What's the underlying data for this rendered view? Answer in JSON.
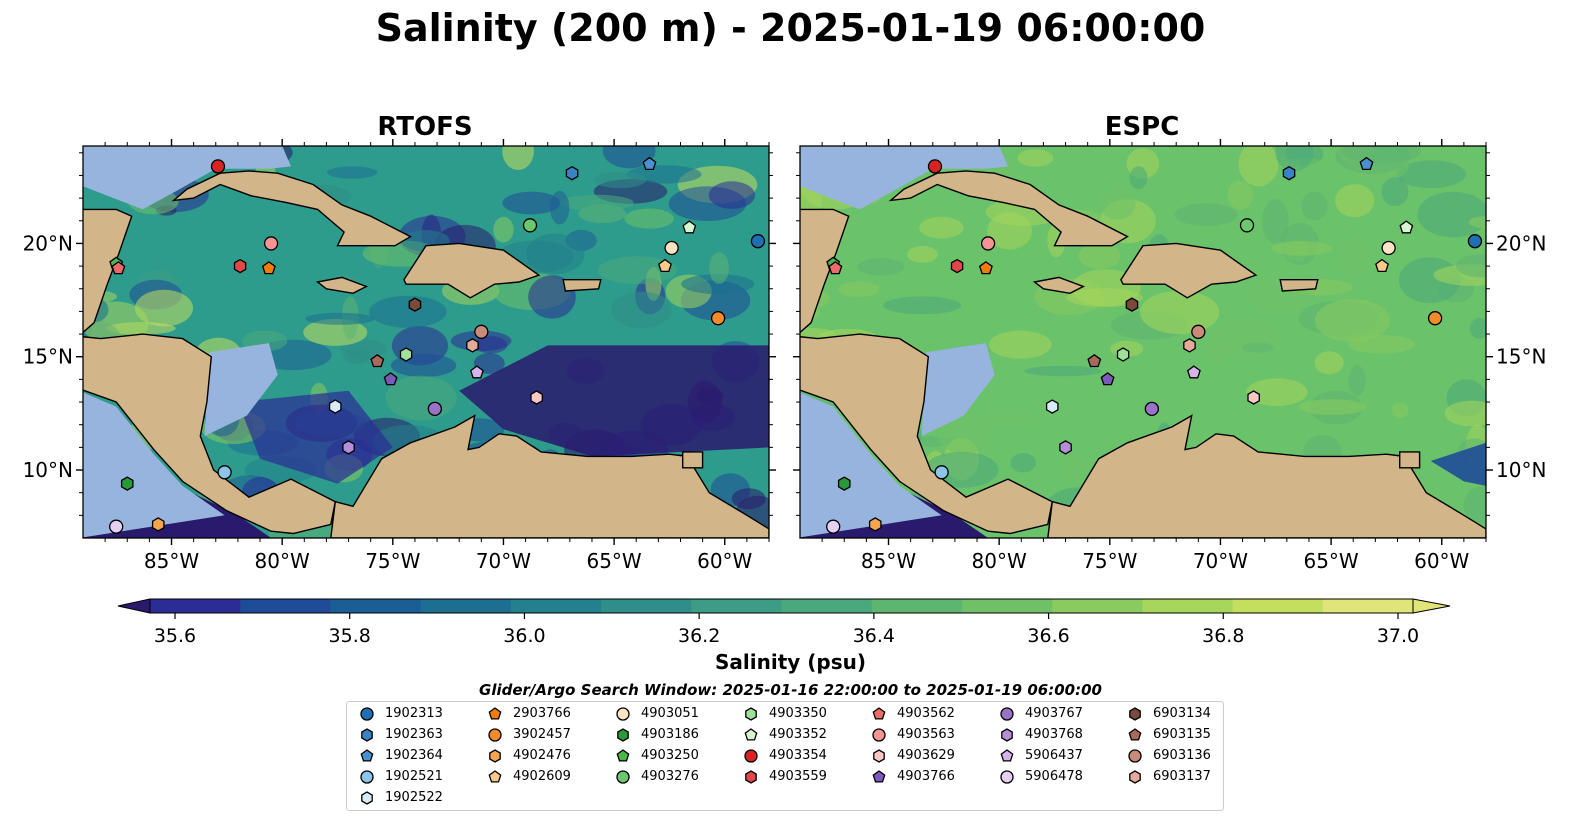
{
  "title": "Salinity (200 m) - 2025-01-19 06:00:00",
  "panels": [
    {
      "title": "RTOFS",
      "color": "#2e9c8c"
    },
    {
      "title": "ESPC",
      "color": "#6ac26a"
    }
  ],
  "colorbar": {
    "label": "Salinity (psu)",
    "ticks": [
      "35.6",
      "35.8",
      "36.0",
      "36.2",
      "36.4",
      "36.6",
      "36.8",
      "37.0"
    ],
    "min": 35.6,
    "max": 37.0,
    "step": 0.1,
    "colors": [
      "#2a1a6e",
      "#2b2c96",
      "#1f4c98",
      "#1b5e96",
      "#1c6f91",
      "#23808d",
      "#2f8e89",
      "#3c9c84",
      "#4aa97c",
      "#5cb571",
      "#70c166",
      "#89cb5e",
      "#a6d65b",
      "#c4df5e",
      "#e0e57a"
    ]
  },
  "axes": {
    "lon_ticks": [
      "85°W",
      "80°W",
      "75°W",
      "70°W",
      "65°W",
      "60°W"
    ],
    "lat_ticks": [
      "10°N",
      "15°N",
      "20°N"
    ]
  },
  "search_window": "Glider/Argo Search Window: 2025-01-16 22:00:00 to 2025-01-19 06:00:00",
  "chart_data": {
    "type": "scatter",
    "title": "Salinity (200 m) - 2025-01-19 06:00:00",
    "subplots": [
      "RTOFS",
      "ESPC"
    ],
    "xlim": [
      -89,
      -58
    ],
    "ylim": [
      7,
      24.3
    ],
    "colorbar_label": "Salinity (psu)",
    "colorbar_range": [
      35.6,
      37.0
    ],
    "series": [
      {
        "name": "1902313",
        "marker": "circle",
        "color": "#1f6fb4",
        "lon": -58.5,
        "lat": 20.1
      },
      {
        "name": "1902363",
        "marker": "hexagon",
        "color": "#3a82c4",
        "lon": -66.9,
        "lat": 23.1
      },
      {
        "name": "1902364",
        "marker": "pentagon",
        "color": "#4a90cf",
        "lon": -63.4,
        "lat": 23.5
      },
      {
        "name": "1902521",
        "marker": "circle",
        "color": "#8cc4ea",
        "lon": -82.6,
        "lat": 9.9
      },
      {
        "name": "1902522",
        "marker": "hexagon",
        "color": "#d6ecfa",
        "lon": -77.6,
        "lat": 12.8
      },
      {
        "name": "2903766",
        "marker": "pentagon",
        "color": "#f07c0a",
        "lon": -80.6,
        "lat": 18.9
      },
      {
        "name": "3902457",
        "marker": "circle",
        "color": "#f48b2a",
        "lon": -60.3,
        "lat": 16.7
      },
      {
        "name": "4902476",
        "marker": "hexagon",
        "color": "#f5a54e",
        "lon": -85.6,
        "lat": 7.6
      },
      {
        "name": "4902609",
        "marker": "pentagon",
        "color": "#f9c98a",
        "lon": -62.7,
        "lat": 19.0
      },
      {
        "name": "4903051",
        "marker": "circle",
        "color": "#fce3c4",
        "lon": -62.4,
        "lat": 19.8
      },
      {
        "name": "4903186",
        "marker": "hexagon",
        "color": "#2a9a38",
        "lon": -87.0,
        "lat": 9.4
      },
      {
        "name": "4903250",
        "marker": "pentagon",
        "color": "#4ab54a",
        "lon": -87.5,
        "lat": 19.1
      },
      {
        "name": "4903276",
        "marker": "circle",
        "color": "#6cc86c",
        "lon": -68.8,
        "lat": 20.8
      },
      {
        "name": "4903350",
        "marker": "hexagon",
        "color": "#9ee29a",
        "lon": -74.4,
        "lat": 15.1
      },
      {
        "name": "4903352",
        "marker": "pentagon",
        "color": "#d8f5d2",
        "lon": -61.6,
        "lat": 20.7
      },
      {
        "name": "4903354",
        "marker": "circle",
        "color": "#d62424",
        "lon": -82.9,
        "lat": 23.4
      },
      {
        "name": "4903559",
        "marker": "hexagon",
        "color": "#e04848",
        "lon": -81.9,
        "lat": 19.0
      },
      {
        "name": "4903562",
        "marker": "pentagon",
        "color": "#ec6a6a",
        "lon": -87.4,
        "lat": 18.9
      },
      {
        "name": "4903563",
        "marker": "circle",
        "color": "#f49494",
        "lon": -80.5,
        "lat": 20.0
      },
      {
        "name": "4903629",
        "marker": "hexagon",
        "color": "#f9c8c4",
        "lon": -68.5,
        "lat": 13.2
      },
      {
        "name": "4903766",
        "marker": "pentagon",
        "color": "#7b5ab8",
        "lon": -75.1,
        "lat": 14.0
      },
      {
        "name": "4903767",
        "marker": "circle",
        "color": "#9a72c8",
        "lon": -73.1,
        "lat": 12.7
      },
      {
        "name": "4903768",
        "marker": "hexagon",
        "color": "#b68ed8",
        "lon": -77.0,
        "lat": 11.0
      },
      {
        "name": "5906437",
        "marker": "pentagon",
        "color": "#d4b4ea",
        "lon": -71.2,
        "lat": 14.3
      },
      {
        "name": "5906478",
        "marker": "circle",
        "color": "#e6d0f2",
        "lon": -87.5,
        "lat": 7.5
      },
      {
        "name": "6903134",
        "marker": "hexagon",
        "color": "#7a4a3a",
        "lon": -74.0,
        "lat": 17.3
      },
      {
        "name": "6903135",
        "marker": "pentagon",
        "color": "#a86a5c",
        "lon": -75.7,
        "lat": 14.8
      },
      {
        "name": "6903136",
        "marker": "circle",
        "color": "#c98a7a",
        "lon": -71.0,
        "lat": 16.1
      },
      {
        "name": "6903137",
        "marker": "hexagon",
        "color": "#e6aa9a",
        "lon": -71.4,
        "lat": 15.5
      }
    ]
  },
  "colors": {
    "land": "#d3b58a",
    "shelf": "#97b4de",
    "coast": "#000000"
  }
}
